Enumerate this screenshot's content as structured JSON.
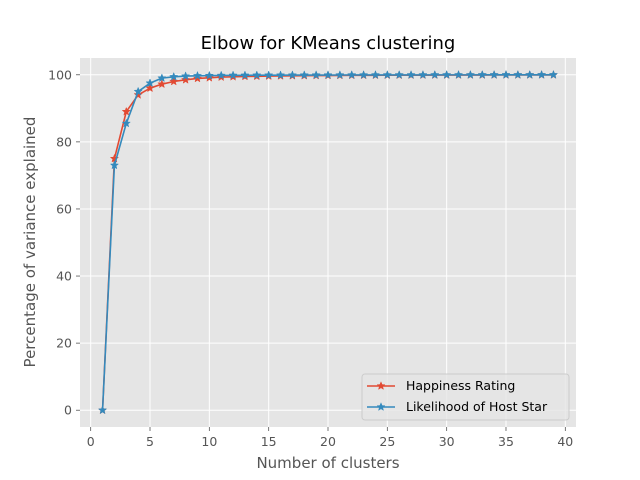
{
  "chart_data": {
    "type": "line",
    "title": "Elbow for KMeans clustering",
    "xlabel": "Number of clusters",
    "ylabel": "Percentage of variance explained",
    "xlim": [
      -0.9,
      40.9
    ],
    "ylim": [
      -5,
      105
    ],
    "xticks": [
      0,
      5,
      10,
      15,
      20,
      25,
      30,
      35,
      40
    ],
    "yticks": [
      0,
      20,
      40,
      60,
      80,
      100
    ],
    "grid": true,
    "legend_position": "bottom-right",
    "x": [
      1,
      2,
      3,
      4,
      5,
      6,
      7,
      8,
      9,
      10,
      11,
      12,
      13,
      14,
      15,
      16,
      17,
      18,
      19,
      20,
      21,
      22,
      23,
      24,
      25,
      26,
      27,
      28,
      29,
      30,
      31,
      32,
      33,
      34,
      35,
      36,
      37,
      38,
      39
    ],
    "series": [
      {
        "name": "Happiness Rating",
        "color": "#E24A33",
        "marker": "star",
        "values": [
          0,
          75,
          89,
          94,
          96,
          97.2,
          98,
          98.5,
          98.9,
          99.1,
          99.3,
          99.4,
          99.5,
          99.55,
          99.6,
          99.65,
          99.7,
          99.72,
          99.75,
          99.77,
          99.8,
          99.82,
          99.84,
          99.85,
          99.86,
          99.87,
          99.88,
          99.89,
          99.9,
          99.9,
          99.91,
          99.92,
          99.92,
          99.93,
          99.93,
          99.94,
          99.94,
          99.95,
          99.95
        ]
      },
      {
        "name": "Likelihood of Host Star",
        "color": "#348ABD",
        "marker": "star",
        "values": [
          0,
          73,
          85.5,
          95,
          97.5,
          99,
          99.4,
          99.6,
          99.7,
          99.75,
          99.8,
          99.83,
          99.85,
          99.87,
          99.88,
          99.89,
          99.9,
          99.91,
          99.92,
          99.92,
          99.93,
          99.94,
          99.94,
          99.95,
          99.95,
          99.96,
          99.96,
          99.96,
          99.97,
          99.97,
          99.97,
          99.97,
          99.98,
          99.98,
          99.98,
          99.98,
          99.98,
          99.99,
          99.99
        ]
      }
    ]
  }
}
